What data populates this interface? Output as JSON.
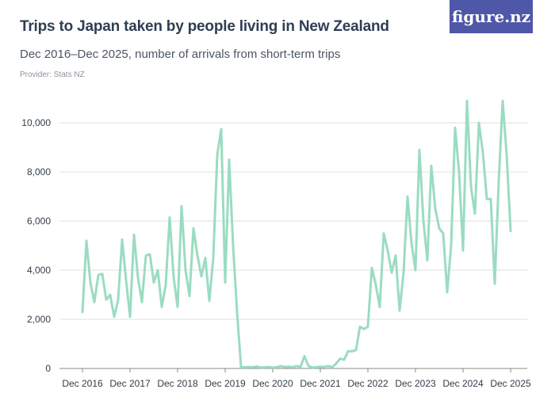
{
  "header": {
    "title": "Trips to Japan taken by people living in New Zealand",
    "subtitle": "Dec 2016–Dec 2025, number of arrivals from short-term trips",
    "provider": "Provider: Stats NZ",
    "logo": "figure.nz"
  },
  "colors": {
    "line": "#9bdcc0",
    "grid": "#dcdfe3",
    "axis": "#888888",
    "logo_bg": "#4f57a8"
  },
  "chart_data": {
    "type": "line",
    "title": "Trips to Japan taken by people living in New Zealand",
    "subtitle": "Dec 2016–Dec 2025, number of arrivals from short-term trips",
    "xlabel": "",
    "ylabel": "",
    "ylim": [
      0,
      10500
    ],
    "grid": true,
    "y_ticks": [
      0,
      2000,
      4000,
      6000,
      8000,
      10000
    ],
    "y_tick_labels": [
      "0",
      "2,000",
      "4,000",
      "6,000",
      "8,000",
      "10,000"
    ],
    "x_tick_labels": [
      "Dec 2016",
      "Dec 2017",
      "Dec 2018",
      "Dec 2019",
      "Dec 2020",
      "Dec 2021",
      "Dec 2022",
      "Dec 2023",
      "Dec 2024",
      "Dec 2025"
    ],
    "series": [
      {
        "values": [
          2300,
          5200,
          3500,
          2700,
          3800,
          3850,
          2800,
          3000,
          2100,
          2800,
          5250,
          3600,
          2100,
          5450,
          3700,
          2700,
          4600,
          4650,
          3500,
          4000,
          2500,
          3400,
          6150,
          3700,
          2500,
          6600,
          4000,
          2950,
          5700,
          4600,
          3750,
          4500,
          2750,
          4500,
          8700,
          9750,
          3500,
          8500,
          5000,
          2300,
          50,
          50,
          60,
          50,
          80,
          40,
          50,
          60,
          40,
          50,
          100,
          60,
          70,
          50,
          100,
          60,
          500,
          100,
          40,
          50,
          70,
          60,
          100,
          50,
          200,
          400,
          350,
          700,
          700,
          750,
          1700,
          1600,
          1700,
          4100,
          3400,
          2500,
          5500,
          4800,
          3900,
          4600,
          2350,
          3900,
          7000,
          5100,
          4000,
          8900,
          6000,
          4400,
          8250,
          6500,
          5700,
          5500,
          3100,
          5000,
          9800,
          8000,
          4800,
          10900,
          7400,
          6300,
          10000,
          8800,
          6900,
          6900,
          3450,
          7600,
          10900,
          8700,
          5600
        ]
      }
    ]
  }
}
